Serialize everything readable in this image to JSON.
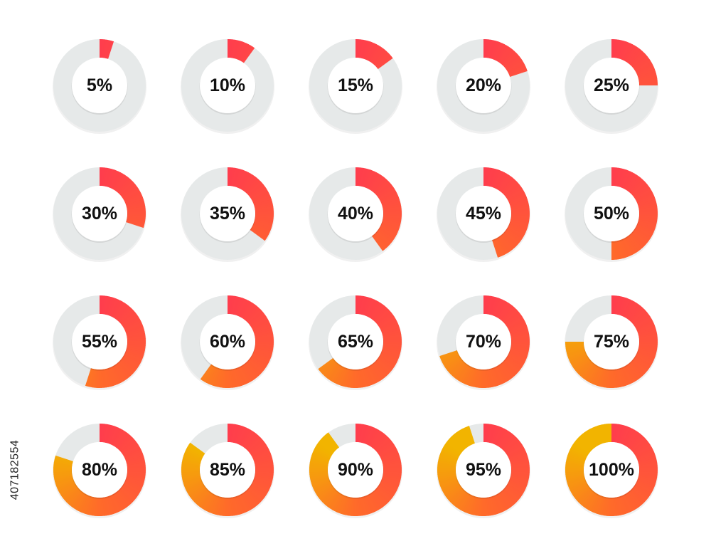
{
  "chart_data": {
    "type": "pie",
    "variant": "donut-grid",
    "values": [
      5,
      10,
      15,
      20,
      25,
      30,
      35,
      40,
      45,
      50,
      55,
      60,
      65,
      70,
      75,
      80,
      85,
      90,
      95,
      100
    ],
    "labels": [
      "5%",
      "10%",
      "15%",
      "20%",
      "25%",
      "30%",
      "35%",
      "40%",
      "45%",
      "50%",
      "55%",
      "60%",
      "65%",
      "70%",
      "75%",
      "80%",
      "85%",
      "90%",
      "95%",
      "100%"
    ],
    "max": 100,
    "grid": {
      "rows": 4,
      "columns": 5
    },
    "direction": "clockwise from top"
  },
  "colors": {
    "track": "#e6e9e9",
    "gradient_start": "#ff3d4d",
    "gradient_mid": "#ff6a2a",
    "gradient_end": "#f2b400",
    "label": "#111111"
  },
  "watermark_id": "407182554"
}
